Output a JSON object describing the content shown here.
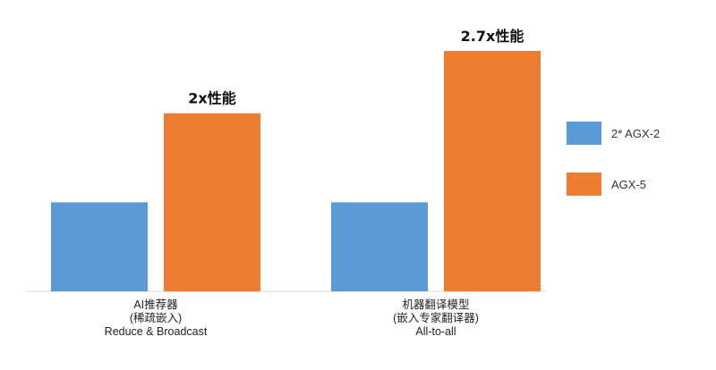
{
  "chart_data": {
    "type": "bar",
    "categories": [
      {
        "lines": [
          "AI推荐器",
          "(稀疏嵌入)",
          "Reduce & Broadcast"
        ]
      },
      {
        "lines": [
          "机器翻译模型",
          "(嵌入专家翻译器)",
          "All-to-all"
        ]
      }
    ],
    "series": [
      {
        "name": "2* AGX-2",
        "color": "#5b9bd5",
        "values": [
          1,
          1
        ]
      },
      {
        "name": "AGX-5",
        "color": "#ed7d31",
        "values": [
          2,
          2.7
        ]
      }
    ],
    "annotations": [
      "2x性能",
      "2.7x性能"
    ],
    "ylim": [
      0,
      2.7
    ],
    "grid": false,
    "legend_position": "right"
  }
}
